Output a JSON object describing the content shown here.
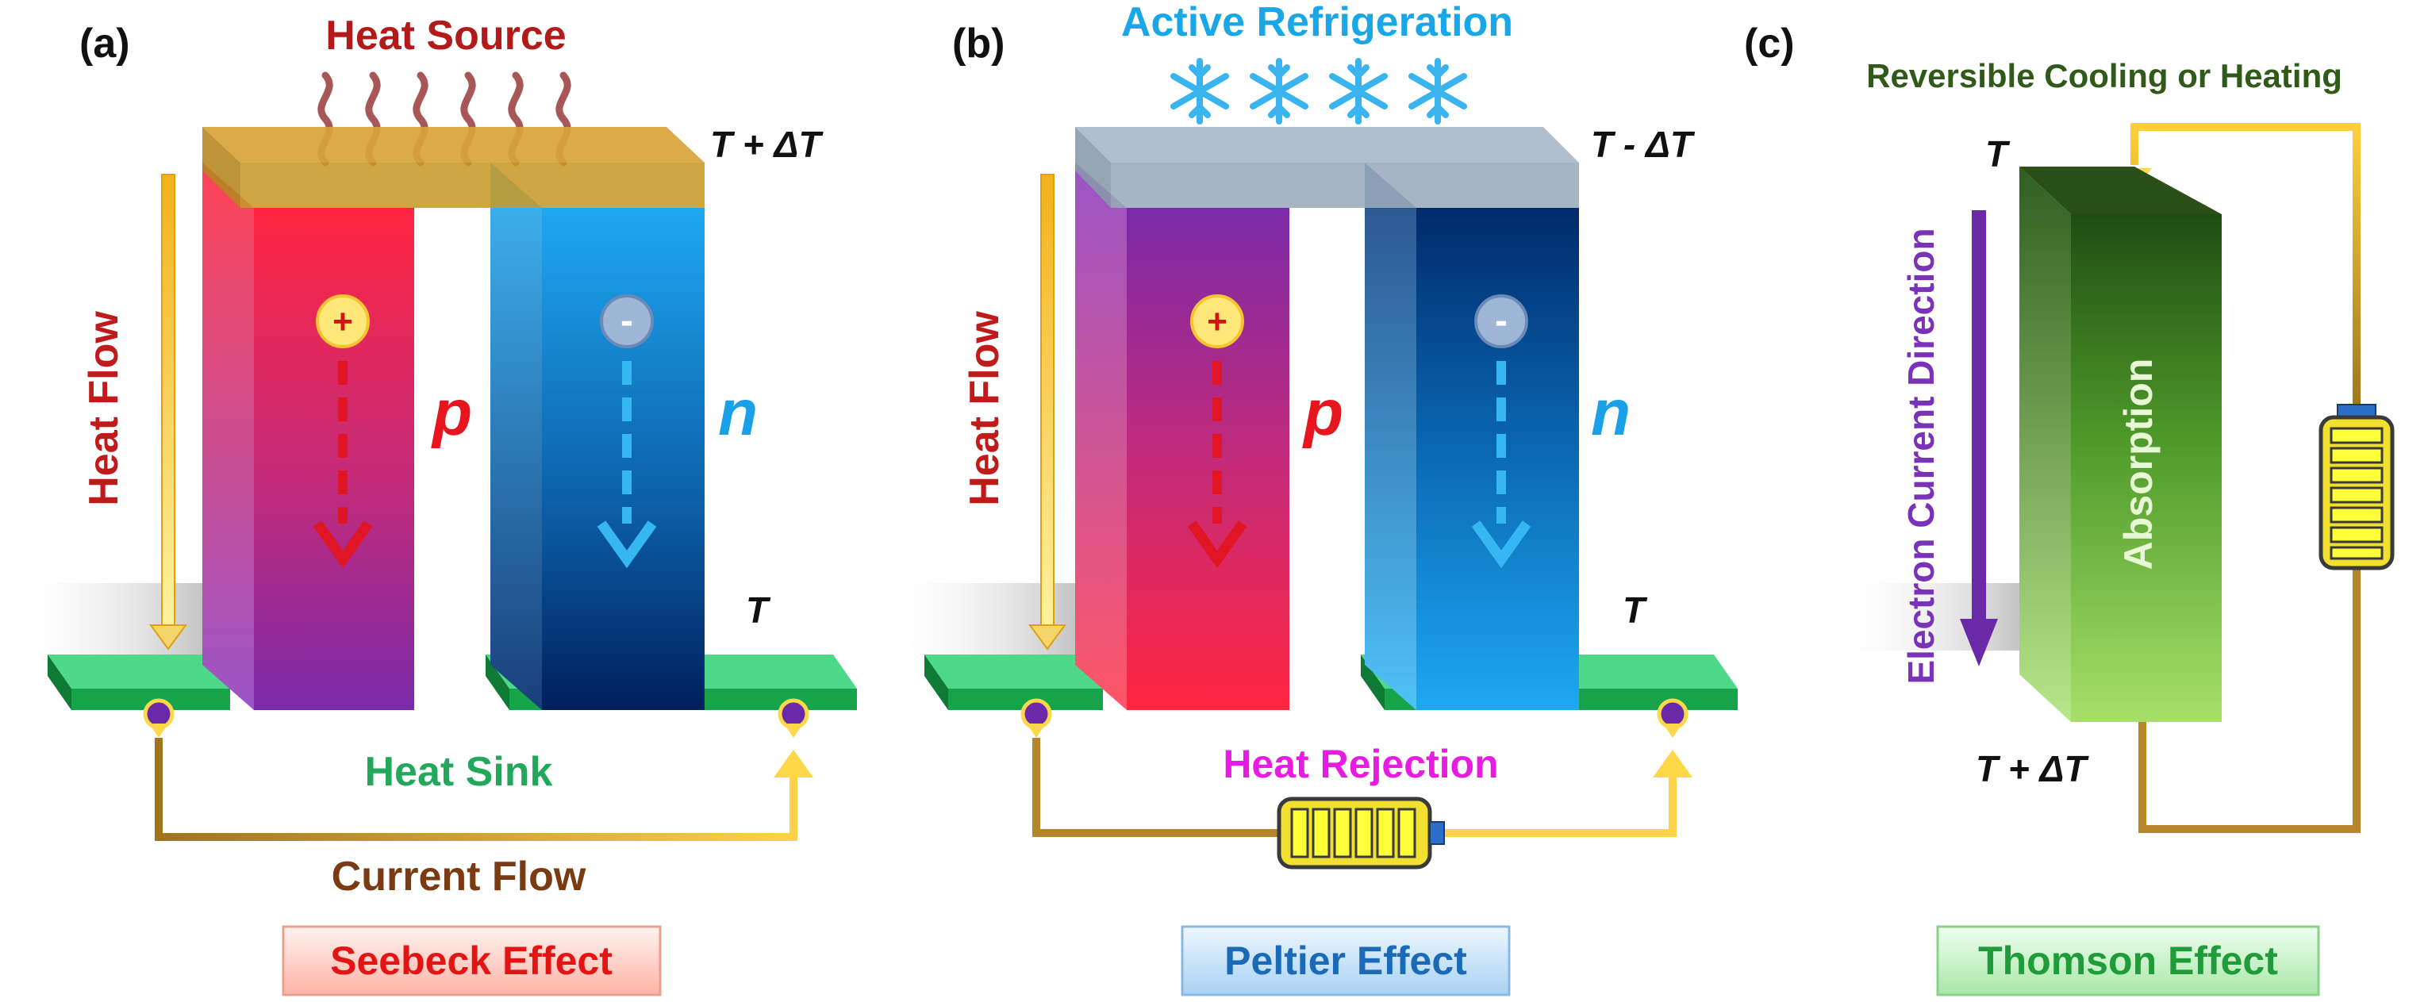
{
  "panel_a": {
    "letter": "(a)",
    "heat_source": "Heat Source",
    "temp_hot": "T + ΔT",
    "temp_cold": "T",
    "heat_flow": "Heat Flow",
    "p_sign": "+",
    "n_sign": "-",
    "p_label": "p",
    "n_label": "n",
    "heat_sink": "Heat Sink",
    "current_flow": "Current Flow",
    "effect_name": "Seebeck Effect"
  },
  "panel_b": {
    "letter": "(b)",
    "active_refrigeration": "Active Refrigeration",
    "temp_cold": "T - ΔT",
    "temp_ref": "T",
    "heat_flow": "Heat Flow",
    "p_sign": "+",
    "n_sign": "-",
    "p_label": "p",
    "n_label": "n",
    "heat_rejection": "Heat Rejection",
    "effect_name": "Peltier Effect"
  },
  "panel_c": {
    "letter": "(c)",
    "reversible": "Reversible Cooling or Heating",
    "temp_top": "T",
    "temp_bottom": "T + ΔT",
    "electron_direction": "Electron Current Direction",
    "absorption": "Absorption",
    "effect_name": "Thomson Effect"
  },
  "colors": {
    "p_leg_top": "#ff2a3c",
    "p_leg_bottom": "#7a2aa8",
    "n_leg_top": "#1ea5f0",
    "n_leg_bottom": "#001f5c",
    "heat_sink": "#2ec46a",
    "wire": "#d9a52a",
    "heat_label": "#b31b1b",
    "refrigeration_label": "#1aa7e8",
    "rejection_label": "#e81ce0",
    "thomson_label": "#1f9b3a",
    "electron_arrow": "#6a2aa8"
  }
}
